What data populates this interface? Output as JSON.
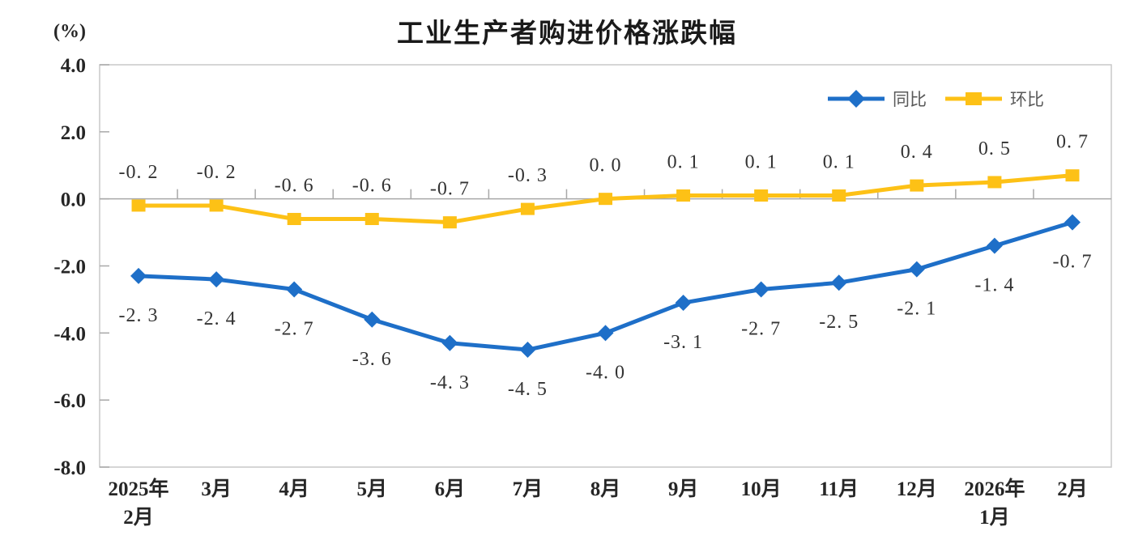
{
  "page": {
    "title": "工业生产者购进价格涨跌幅",
    "unit_label": "(%)"
  },
  "chart_data": {
    "type": "line",
    "title": "工业生产者购进价格涨跌幅",
    "unit": "(%)",
    "grid": false,
    "legend_position": "top-right",
    "categories": [
      "2025年\n2月",
      "3月",
      "4月",
      "5月",
      "6月",
      "7月",
      "8月",
      "9月",
      "10月",
      "11月",
      "12月",
      "2026年\n1月",
      "2月"
    ],
    "y_axis": {
      "min": -8.0,
      "max": 4.0,
      "tick_labels": [
        "4.0",
        "2.0",
        "0.0",
        "-2.0",
        "-4.0",
        "-6.0",
        "-8.0"
      ]
    },
    "series": [
      {
        "id": "tongbi",
        "name": "同比",
        "marker": "diamond",
        "color": "#1E6FC8",
        "label_position": "below",
        "values": [
          -2.3,
          -2.4,
          -2.7,
          -3.6,
          -4.3,
          -4.5,
          -4.0,
          -3.1,
          -2.7,
          -2.5,
          -2.1,
          -1.4,
          -0.7
        ],
        "labels": [
          "-2. 3",
          "-2. 4",
          "-2. 7",
          "-3. 6",
          "-4. 3",
          "-4. 5",
          "-4. 0",
          "-3. 1",
          "-2. 7",
          "-2. 5",
          "-2. 1",
          "-1. 4",
          "-0. 7"
        ]
      },
      {
        "id": "huanbi",
        "name": "环比",
        "marker": "square",
        "color": "#FDC116",
        "label_position": "above",
        "values": [
          -0.2,
          -0.2,
          -0.6,
          -0.6,
          -0.7,
          -0.3,
          0.0,
          0.1,
          0.1,
          0.1,
          0.4,
          0.5,
          0.7
        ],
        "labels": [
          "-0. 2",
          "-0. 2",
          "-0. 6",
          "-0. 6",
          "-0. 7",
          "-0. 3",
          "0. 0",
          "0. 1",
          "0. 1",
          "0. 1",
          "0. 4",
          "0. 5",
          "0. 7"
        ]
      }
    ],
    "colors": {
      "axis": "#A8A8A8",
      "border": "#C9C9C9"
    }
  }
}
